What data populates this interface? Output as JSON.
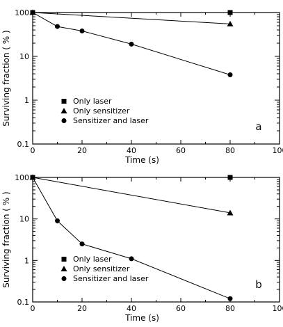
{
  "chart_data": [
    {
      "type": "line",
      "panel_label": "a",
      "xlabel": "Time  (s)",
      "ylabel": "Surviving  fraction  ( % )",
      "xlim": [
        0,
        100
      ],
      "ylim": [
        0.1,
        100
      ],
      "yscale": "log",
      "x_ticks": [
        0,
        20,
        40,
        60,
        80,
        100
      ],
      "y_ticks": [
        {
          "value": 0.1,
          "label": "0.1"
        },
        {
          "value": 1,
          "label": "1"
        },
        {
          "value": 10,
          "label": "10"
        },
        {
          "value": 100,
          "label": "100"
        }
      ],
      "legend_position": "lower-left",
      "series": [
        {
          "name": "Only laser",
          "marker": "square",
          "x": [
            0,
            80
          ],
          "y": [
            100,
            100
          ]
        },
        {
          "name": "Only sensitizer",
          "marker": "triangle",
          "x": [
            0,
            80
          ],
          "y": [
            100,
            55
          ]
        },
        {
          "name": "Sensitizer and laser",
          "marker": "circle",
          "x": [
            0,
            10,
            20,
            40,
            80
          ],
          "y": [
            100,
            48,
            38,
            19,
            3.8
          ]
        }
      ]
    },
    {
      "type": "line",
      "panel_label": "b",
      "xlabel": "Time  (s)",
      "ylabel": "Surviving  fraction  ( % )",
      "xlim": [
        0,
        100
      ],
      "ylim": [
        0.1,
        100
      ],
      "yscale": "log",
      "x_ticks": [
        0,
        20,
        40,
        60,
        80,
        100
      ],
      "y_ticks": [
        {
          "value": 0.1,
          "label": "0.1"
        },
        {
          "value": 1,
          "label": "1"
        },
        {
          "value": 10,
          "label": "10"
        },
        {
          "value": 100,
          "label": "100"
        }
      ],
      "legend_position": "lower-left",
      "series": [
        {
          "name": "Only laser",
          "marker": "square",
          "x": [
            0,
            80
          ],
          "y": [
            100,
            100
          ]
        },
        {
          "name": "Only sensitizer",
          "marker": "triangle",
          "x": [
            0,
            80
          ],
          "y": [
            100,
            14
          ]
        },
        {
          "name": "Sensitizer and laser",
          "marker": "circle",
          "x": [
            0,
            10,
            20,
            40,
            80
          ],
          "y": [
            100,
            9,
            2.5,
            1.1,
            0.12
          ]
        }
      ]
    }
  ]
}
